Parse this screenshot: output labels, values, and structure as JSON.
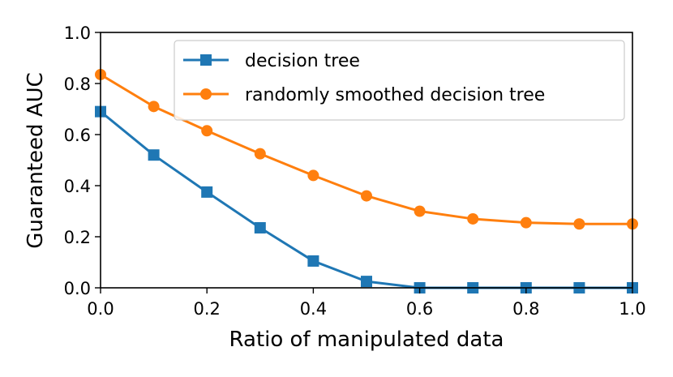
{
  "chart_data": {
    "type": "line",
    "xlabel": "Ratio of manipulated data",
    "ylabel": "Guaranteed AUC",
    "xlim": [
      0.0,
      1.0
    ],
    "ylim": [
      0.0,
      1.0
    ],
    "x_ticks": [
      "0.0",
      "0.2",
      "0.4",
      "0.6",
      "0.8",
      "1.0"
    ],
    "y_ticks": [
      "0.0",
      "0.2",
      "0.4",
      "0.6",
      "0.8",
      "1.0"
    ],
    "grid": false,
    "legend_position": "top-right",
    "x": [
      0.0,
      0.1,
      0.2,
      0.3,
      0.4,
      0.5,
      0.6,
      0.7,
      0.8,
      0.9,
      1.0
    ],
    "series": [
      {
        "name": "decision tree",
        "color": "#1f77b4",
        "marker": "square",
        "values": [
          0.69,
          0.52,
          0.375,
          0.235,
          0.105,
          0.025,
          0.0,
          0.0,
          0.0,
          0.0,
          0.0
        ]
      },
      {
        "name": "randomly smoothed decision tree",
        "color": "#ff7f0e",
        "marker": "circle",
        "values": [
          0.835,
          0.71,
          0.615,
          0.525,
          0.44,
          0.36,
          0.3,
          0.27,
          0.255,
          0.25,
          0.25
        ]
      }
    ]
  }
}
